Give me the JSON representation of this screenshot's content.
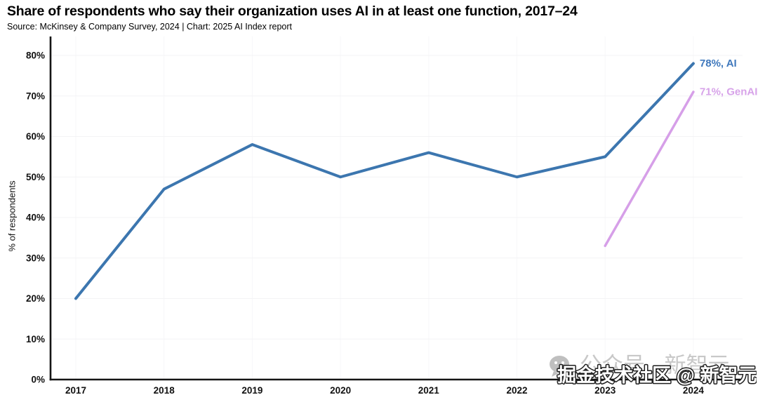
{
  "header": {
    "title": "Share of respondents who say their organization uses AI in at least one function, 2017–24",
    "source": "Source: McKinsey & Company Survey, 2024 | Chart: 2025 AI Index report"
  },
  "chart_data": {
    "type": "line",
    "title": "Share of respondents who say their organization uses AI in at least one function, 2017–24",
    "categories": [
      "2017",
      "2018",
      "2019",
      "2020",
      "2021",
      "2022",
      "2023",
      "2024"
    ],
    "series": [
      {
        "name": "AI",
        "values": [
          20,
          47,
          58,
          50,
          56,
          50,
          55,
          78
        ],
        "color": "#3c76af",
        "line_width": 4,
        "end_label": "78%, AI",
        "label_color": "#4079bd"
      },
      {
        "name": "GenAI",
        "values": [
          null,
          null,
          null,
          null,
          null,
          null,
          33,
          71
        ],
        "color": "#d69fe8",
        "line_width": 3.5,
        "end_label": "71%, GenAI",
        "label_color": "#d7a3e9"
      }
    ],
    "xlabel": "",
    "ylabel": "% of respondents",
    "ylim": [
      0,
      80
    ],
    "yticks": [
      0,
      10,
      20,
      30,
      40,
      50,
      60,
      70,
      80
    ],
    "ytick_suffix": "%",
    "grid": "faint horizontal and vertical gridlines",
    "legend_position": "end-of-line labels, right side"
  },
  "watermark": {
    "wechat_text": "公众号 · 新智元",
    "overlay_text": "掘金技术社区 @ 新智元"
  }
}
